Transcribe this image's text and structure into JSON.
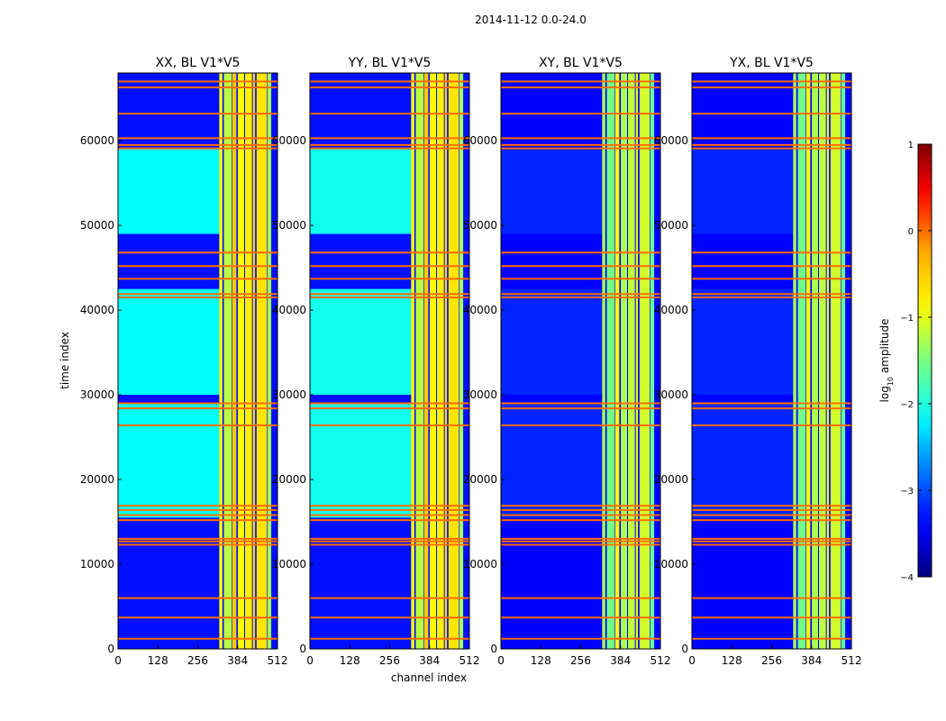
{
  "chart_data": {
    "type": "heatmap",
    "suptitle": "2014-11-12 0.0-24.0",
    "xlabel": "channel index",
    "ylabel": "time index",
    "xlim": [
      0,
      512
    ],
    "ylim": [
      0,
      68000
    ],
    "xticks": [
      0,
      128,
      256,
      384,
      512
    ],
    "yticks": [
      0,
      10000,
      20000,
      30000,
      40000,
      50000,
      60000
    ],
    "colormap": "jet",
    "colorbar": {
      "label": "log₁₀ amplitude",
      "label_base": "log",
      "label_sub": "10",
      "label_rest": " amplitude",
      "range": [
        -4,
        1
      ],
      "ticks": [
        -4,
        -3,
        -2,
        -1,
        0,
        1
      ],
      "tick_labels": [
        "−4",
        "−3",
        "−2",
        "−1",
        "0",
        "1"
      ]
    },
    "panels": [
      {
        "title": "XX, BL V1*V5",
        "bg_level": -3.3,
        "bright_level": -2.2,
        "band_strength": 1.0
      },
      {
        "title": "YY, BL V1*V5",
        "bg_level": -3.3,
        "bright_level": -2.1,
        "band_strength": 1.0
      },
      {
        "title": "XY, BL V1*V5",
        "bg_level": -3.4,
        "bright_level": -3.2,
        "band_strength": 0.85
      },
      {
        "title": "YX, BL V1*V5",
        "bg_level": -3.4,
        "bright_level": -3.2,
        "band_strength": 0.85
      }
    ],
    "bright_time_ranges": [
      [
        15500,
        29000
      ],
      [
        30000,
        42500
      ],
      [
        49000,
        59000
      ]
    ],
    "rfi_channel_bands": [
      [
        325,
        335,
        -0.9
      ],
      [
        340,
        365,
        -1.2
      ],
      [
        367,
        380,
        -0.5
      ],
      [
        385,
        405,
        -0.9
      ],
      [
        408,
        430,
        -0.8
      ],
      [
        433,
        440,
        -0.6
      ],
      [
        445,
        478,
        -0.7
      ],
      [
        480,
        492,
        -1.3
      ]
    ],
    "rfi_time_lines": [
      1200,
      3700,
      6000,
      12300,
      12700,
      13000,
      15200,
      15800,
      16400,
      16900,
      26400,
      28400,
      29000,
      41500,
      41900,
      43700,
      45200,
      46800,
      59100,
      59500,
      60300,
      63200,
      66300,
      67000
    ],
    "flag_level": 0.0
  }
}
